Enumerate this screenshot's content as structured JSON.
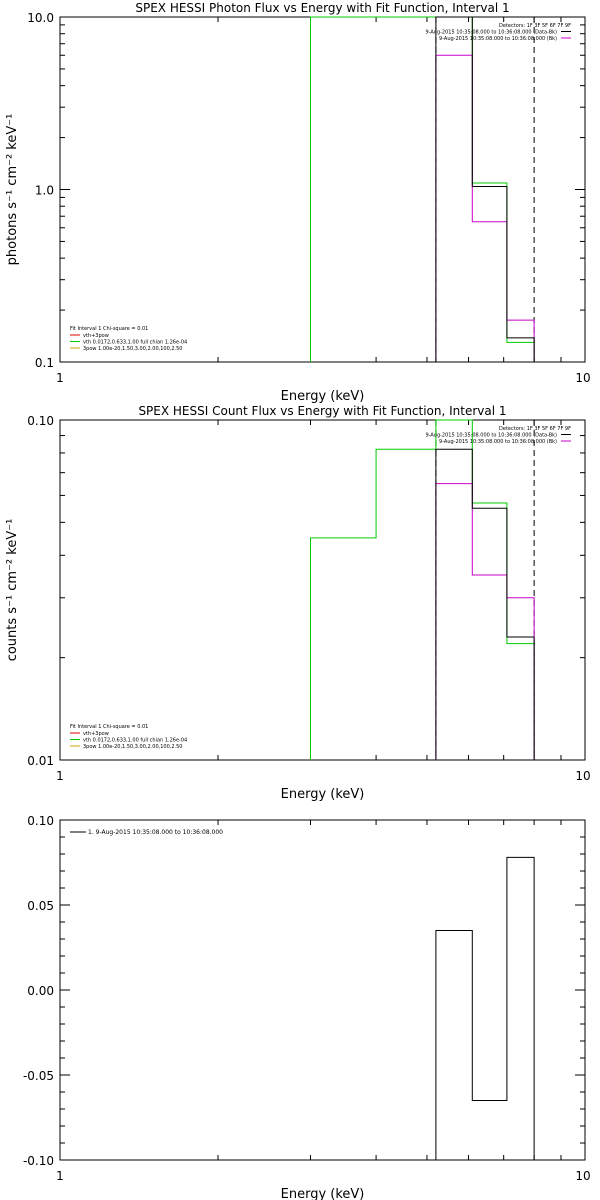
{
  "chart_data": [
    {
      "type": "line",
      "title": "SPEX HESSI Photon Flux vs Energy with Fit Function, Interval 1",
      "xlabel": "Energy (keV)",
      "ylabel": "photons s⁻¹ cm⁻² keV⁻¹",
      "xscale": "log",
      "yscale": "log",
      "xlim": [
        1,
        10
      ],
      "ylim": [
        0.1,
        10
      ],
      "xticks": [
        "1",
        "10"
      ],
      "yticks": [
        {
          "v": 0.1,
          "label": "0.1"
        },
        {
          "v": 1,
          "label": "1.0"
        },
        {
          "v": 10,
          "label": "10.0"
        }
      ],
      "grid": false,
      "legend_top": {
        "placement": "top-right",
        "lines": [
          {
            "text": "Detectors: 1F 3F 5F 6F 7F 9F",
            "color": ""
          },
          {
            "text": "9-Aug-2015 10:35:08.000 to 10:36:08.000 (Data-Bk)",
            "color": "#000000"
          },
          {
            "text": "9-Aug-2015 10:35:08.000 to 10:36:08.000 (Bk)",
            "color": "#cc00cc"
          }
        ]
      },
      "legend_bottom": {
        "placement": "bottom-left",
        "header": "Fit Interval 1    Chi-square = 0.01",
        "lines": [
          {
            "text": "vth+3pow",
            "color": "#dd0000"
          },
          {
            "text": "vth 0.0172,0.633,1.00  full chian 1.26e-04",
            "color": "#00cc00"
          },
          {
            "text": "3pow 1.00e-20,1.50,3.00,2.00,100,2.50",
            "color": "#ccaa00"
          }
        ]
      },
      "vlines": [
        {
          "x": 5.2,
          "color": "#000000",
          "style": "dashed"
        },
        {
          "x": 8.0,
          "color": "#000000",
          "style": "dashed"
        }
      ],
      "series": [
        {
          "color": "#00cc00",
          "steps": [
            [
              3.0,
              4.0,
              10
            ],
            [
              4.0,
              5.2,
              10
            ],
            [
              5.2,
              6.1,
              10
            ],
            [
              6.1,
              7.1,
              1.09
            ],
            [
              7.1,
              8.0,
              0.13
            ]
          ]
        },
        {
          "color": "#cc00cc",
          "steps": [
            [
              5.2,
              6.1,
              6.0
            ],
            [
              6.1,
              7.1,
              0.65
            ],
            [
              7.1,
              8.0,
              0.175
            ]
          ]
        },
        {
          "color": "#000000",
          "steps": [
            [
              5.2,
              6.1,
              10
            ],
            [
              6.1,
              7.1,
              1.04
            ],
            [
              7.1,
              8.0,
              0.138
            ]
          ]
        }
      ]
    },
    {
      "type": "line",
      "title": "SPEX HESSI Count Flux vs Energy with Fit Function, Interval 1",
      "xlabel": "Energy (keV)",
      "ylabel": "counts s⁻¹ cm⁻² keV⁻¹",
      "xscale": "log",
      "yscale": "log",
      "xlim": [
        1,
        10
      ],
      "ylim": [
        0.01,
        0.1
      ],
      "xticks": [
        "1",
        "10"
      ],
      "yticks": [
        {
          "v": 0.01,
          "label": "0.01"
        },
        {
          "v": 0.1,
          "label": "0.10"
        }
      ],
      "grid": false,
      "legend_top": {
        "placement": "top-right",
        "lines": [
          {
            "text": "Detectors: 1F 3F 5F 6F 7F 9F",
            "color": ""
          },
          {
            "text": "9-Aug-2015 10:35:08.000 to 10:36:08.000 (Data-Bk)",
            "color": "#000000"
          },
          {
            "text": "9-Aug-2015 10:35:08.000 to 10:36:08.000 (Bk)",
            "color": "#cc00cc"
          }
        ]
      },
      "legend_bottom": {
        "placement": "bottom-left",
        "header": "Fit Interval 1    Chi-square = 0.01",
        "lines": [
          {
            "text": "vth+3pow",
            "color": "#dd0000"
          },
          {
            "text": "vth 0.0172,0.633,1.00  full chian 1.26e-04",
            "color": "#00cc00"
          },
          {
            "text": "3pow 1.00e-20,1.50,3.00,2.00,100,2.50",
            "color": "#ccaa00"
          }
        ]
      },
      "vlines": [
        {
          "x": 5.2,
          "color": "#000000",
          "style": "dashed"
        },
        {
          "x": 8.0,
          "color": "#000000",
          "style": "dashed"
        }
      ],
      "series": [
        {
          "color": "#00cc00",
          "steps": [
            [
              3.0,
              4.0,
              0.045
            ],
            [
              4.0,
              5.2,
              0.082
            ],
            [
              5.2,
              6.1,
              0.1
            ],
            [
              6.1,
              7.1,
              0.057
            ],
            [
              7.1,
              8.0,
              0.022
            ]
          ]
        },
        {
          "color": "#cc00cc",
          "steps": [
            [
              5.2,
              6.1,
              0.065
            ],
            [
              6.1,
              7.1,
              0.035
            ],
            [
              7.1,
              8.0,
              0.03
            ]
          ]
        },
        {
          "color": "#000000",
          "steps": [
            [
              5.2,
              6.1,
              0.082
            ],
            [
              6.1,
              7.1,
              0.055
            ],
            [
              7.1,
              8.0,
              0.023
            ]
          ]
        }
      ]
    },
    {
      "type": "line",
      "title": "",
      "xlabel": "Energy (keV)",
      "ylabel": "",
      "xscale": "log",
      "yscale": "linear",
      "xlim": [
        1,
        10
      ],
      "ylim": [
        -0.1,
        0.1
      ],
      "xticks": [
        "1",
        "10"
      ],
      "yticks": [
        {
          "v": 0.1,
          "label": "0.10"
        },
        {
          "v": 0.05,
          "label": "0.05"
        },
        {
          "v": 0.0,
          "label": "0.00"
        },
        {
          "v": -0.05,
          "label": "-0.05"
        },
        {
          "v": -0.1,
          "label": "-0.10"
        }
      ],
      "grid": false,
      "legend_top": {
        "placement": "top-left",
        "lines": [
          {
            "text": "1.  9-Aug-2015 10:35:08.000 to 10:36:08.000",
            "color": "#000000"
          }
        ]
      },
      "series": [
        {
          "color": "#000000",
          "steps": [
            [
              5.2,
              6.1,
              0.035
            ],
            [
              6.1,
              7.1,
              -0.065
            ],
            [
              7.1,
              8.0,
              0.078
            ]
          ]
        }
      ]
    }
  ]
}
